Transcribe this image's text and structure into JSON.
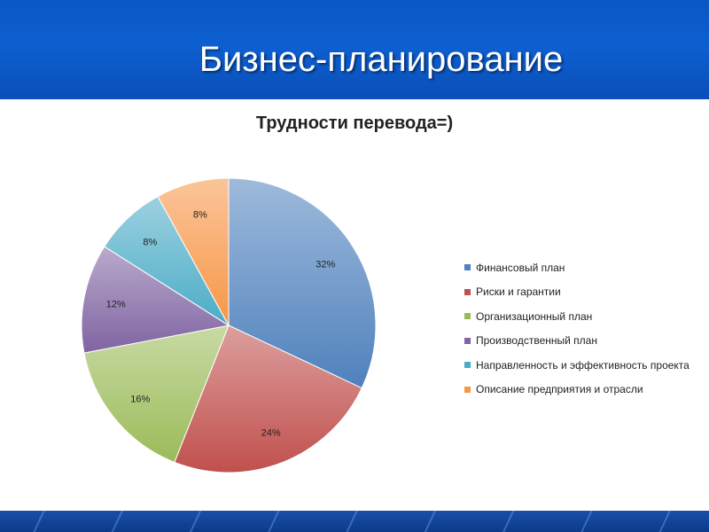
{
  "slide": {
    "title": "Бизнес-планирование"
  },
  "chart_data": {
    "type": "pie",
    "title": "Трудности перевода=)",
    "legend_position": "right",
    "slices": [
      {
        "name": "Финансовый план",
        "value": 32,
        "label": "32%",
        "color": "#4f81bd"
      },
      {
        "name": "Риски и гарантии",
        "value": 24,
        "label": "24%",
        "color": "#c0504d"
      },
      {
        "name": "Организационный план",
        "value": 16,
        "label": "16%",
        "color": "#9bbb59"
      },
      {
        "name": "Производственный план",
        "value": 12,
        "label": "12%",
        "color": "#8064a2"
      },
      {
        "name": "Направленность и эффективность проекта",
        "value": 8,
        "label": "8%",
        "color": "#4bacc6"
      },
      {
        "name": "Описание предприятия и отрасли",
        "value": 8,
        "label": "8%",
        "color": "#f79646"
      }
    ]
  }
}
